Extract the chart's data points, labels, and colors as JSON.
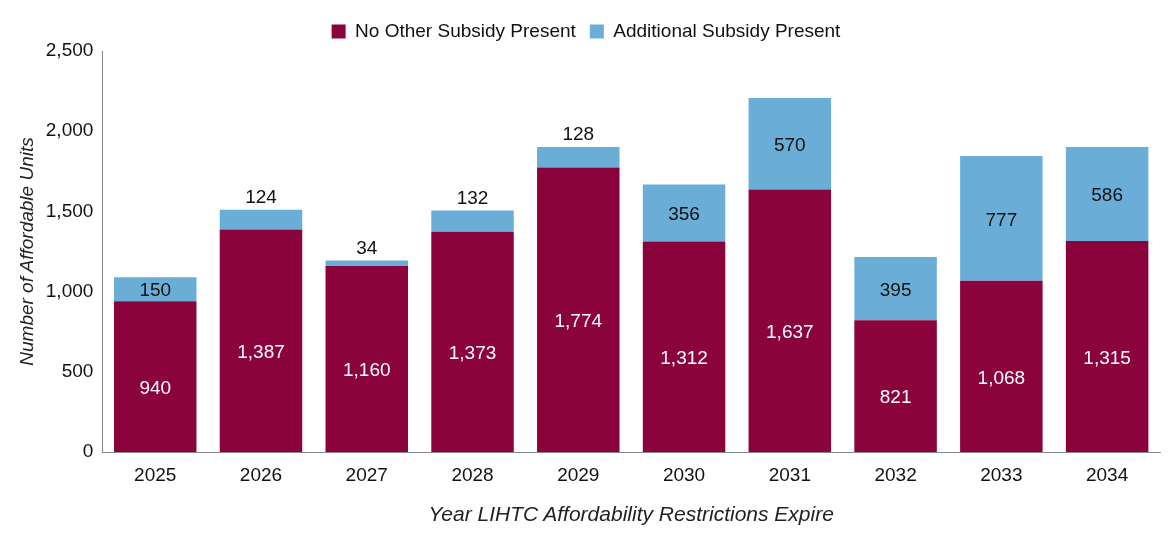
{
  "chart_data": {
    "type": "bar",
    "stacked": true,
    "xlabel": "Year LIHTC Affordability Restrictions Expire",
    "ylabel": "Number of Affordable Units",
    "categories": [
      "2025",
      "2026",
      "2027",
      "2028",
      "2029",
      "2030",
      "2031",
      "2032",
      "2033",
      "2034"
    ],
    "series": [
      {
        "name": "No Other Subsidy Present",
        "color": "#8b033d",
        "values": [
          940,
          1387,
          1160,
          1373,
          1774,
          1312,
          1637,
          821,
          1068,
          1315
        ],
        "value_labels": [
          "940",
          "1,387",
          "1,160",
          "1,373",
          "1,774",
          "1,312",
          "1,637",
          "821",
          "1,068",
          "1,315"
        ]
      },
      {
        "name": "Additional Subsidy Present",
        "color": "#6aaed8",
        "values": [
          150,
          124,
          34,
          132,
          128,
          356,
          570,
          395,
          777,
          586
        ],
        "value_labels": [
          "150",
          "124",
          "34",
          "132",
          "128",
          "356",
          "570",
          "395",
          "777",
          "586"
        ]
      }
    ],
    "ylim": [
      0,
      2500
    ],
    "yticks": [
      {
        "value": 0,
        "label": "0"
      },
      {
        "value": 500,
        "label": "500"
      },
      {
        "value": 1000,
        "label": "1,000"
      },
      {
        "value": 1500,
        "label": "1,500"
      },
      {
        "value": 2000,
        "label": "2,000"
      },
      {
        "value": 2500,
        "label": "2,500"
      }
    ],
    "grid": false,
    "legend": "top"
  }
}
